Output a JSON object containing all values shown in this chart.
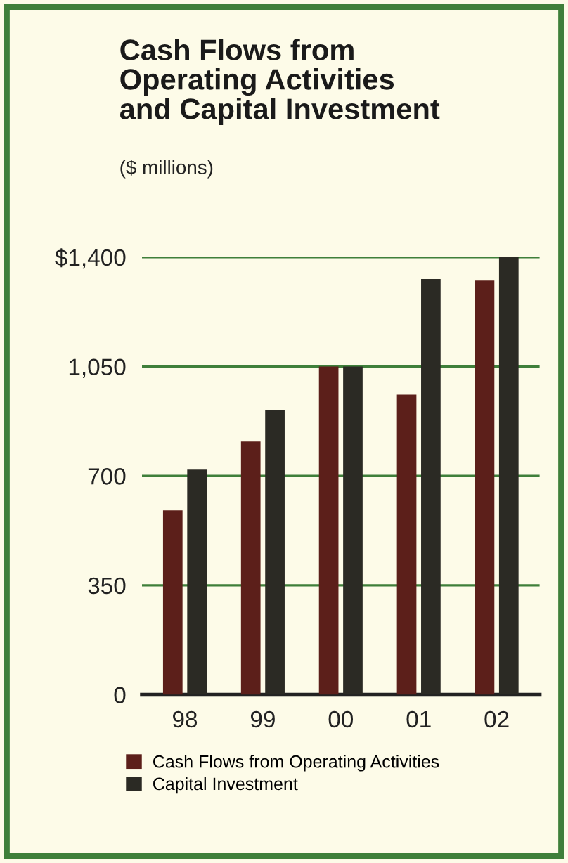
{
  "chart_data": {
    "type": "bar",
    "title": "Cash Flows from\nOperating Activities\nand Capital Investment",
    "subtitle": "($ millions)",
    "categories": [
      "98",
      "99",
      "00",
      "01",
      "02"
    ],
    "series": [
      {
        "name": "Cash Flows from Operating Activities",
        "color": "#5c1f1a",
        "values": [
          590,
          810,
          1050,
          960,
          1325
        ]
      },
      {
        "name": "Capital Investment",
        "color": "#2b2a24",
        "values": [
          720,
          910,
          1050,
          1330,
          1400
        ]
      }
    ],
    "ylim": [
      0,
      1400
    ],
    "yticks": [
      0,
      350,
      700,
      {
        "value": 1050,
        "label": "1,050"
      },
      {
        "value": 1400,
        "label": "$1,400"
      }
    ],
    "grid": "y",
    "legend": "bottom"
  }
}
